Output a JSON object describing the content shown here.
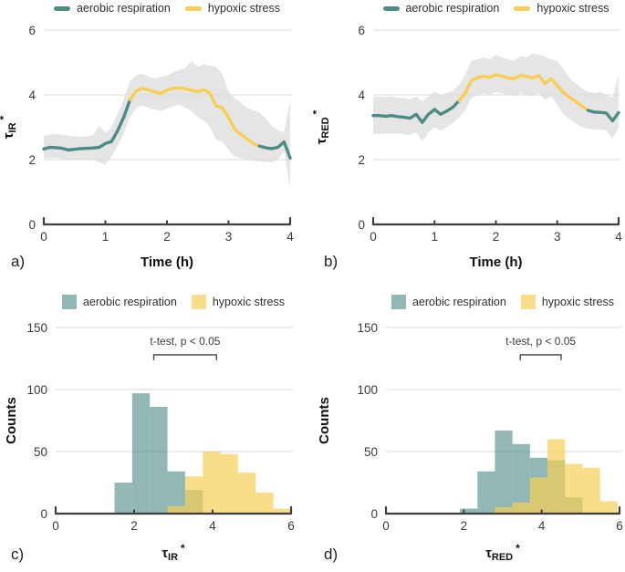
{
  "legend": {
    "items": [
      {
        "key": "aerobic",
        "label": "aerobic respiration"
      },
      {
        "key": "hypoxic",
        "label": "hypoxic stress"
      }
    ]
  },
  "colors": {
    "aerobic": "#4D8C86",
    "hypoxic": "#F8CE55",
    "axis": "#3F3F3F",
    "grid": "#D8D8D8",
    "band": "#DCDCDC",
    "tick_text": "#3A3A3A",
    "title_text": "#111111"
  },
  "chart_data": [
    {
      "panel": "a",
      "letter": "a)",
      "type": "line",
      "xlabel": "Time (h)",
      "ylabel": {
        "symbol": "τ",
        "sub": "IR",
        "sup": "*"
      },
      "xlim": [
        0,
        4
      ],
      "ylim": [
        0,
        6.4
      ],
      "x_ticks": [
        0,
        1,
        2,
        3,
        4
      ],
      "y_ticks": [
        0,
        2,
        4,
        6
      ],
      "gridlines": [
        2,
        4,
        6
      ],
      "x": [
        0,
        0.1,
        0.2,
        0.3,
        0.4,
        0.5,
        0.6,
        0.7,
        0.8,
        0.9,
        1,
        1.1,
        1.2,
        1.3,
        1.4,
        1.5,
        1.6,
        1.7,
        1.8,
        1.9,
        2,
        2.1,
        2.2,
        2.3,
        2.4,
        2.5,
        2.6,
        2.7,
        2.8,
        2.9,
        3,
        3.1,
        3.2,
        3.3,
        3.4,
        3.5,
        3.6,
        3.7,
        3.8,
        3.9,
        4
      ],
      "y": [
        2.33,
        2.38,
        2.37,
        2.35,
        2.3,
        2.32,
        2.34,
        2.35,
        2.36,
        2.38,
        2.5,
        2.56,
        2.9,
        3.32,
        3.85,
        4.12,
        4.2,
        4.15,
        4.1,
        4.04,
        4.15,
        4.2,
        4.22,
        4.19,
        4.14,
        4.1,
        4.16,
        4.04,
        3.66,
        3.6,
        3.3,
        2.94,
        2.78,
        2.64,
        2.5,
        2.42,
        2.37,
        2.34,
        2.38,
        2.55,
        2.05
      ],
      "band_lower": [
        2.03,
        2.05,
        2.05,
        2.02,
        2.0,
        2.0,
        2.01,
        2.02,
        2.0,
        1.92,
        1.85,
        2.1,
        2.42,
        2.82,
        3.32,
        3.58,
        3.68,
        3.6,
        3.55,
        3.5,
        3.58,
        3.64,
        3.7,
        3.6,
        3.5,
        3.32,
        3.2,
        3.0,
        2.62,
        2.55,
        2.3,
        2.1,
        2.05,
        2.0,
        1.96,
        1.95,
        1.93,
        1.92,
        2.0,
        2.25,
        1.15
      ],
      "band_upper": [
        2.74,
        2.77,
        2.79,
        2.77,
        2.74,
        2.72,
        2.7,
        2.72,
        2.76,
        3.04,
        2.82,
        3.0,
        3.42,
        3.86,
        4.44,
        4.6,
        4.66,
        4.56,
        4.5,
        4.55,
        4.6,
        4.7,
        4.76,
        4.84,
        5.04,
        4.86,
        4.94,
        4.9,
        4.86,
        4.64,
        4.1,
        3.9,
        3.76,
        3.6,
        3.52,
        3.46,
        3.28,
        3.05,
        2.9,
        2.85,
        3.85
      ],
      "segments": [
        {
          "from": 0,
          "to": 1.4,
          "series": "aerobic respiration",
          "color_key": "aerobic"
        },
        {
          "from": 1.4,
          "to": 3.5,
          "series": "hypoxic stress",
          "color_key": "hypoxic"
        },
        {
          "from": 3.5,
          "to": 4,
          "series": "aerobic respiration",
          "color_key": "aerobic"
        }
      ]
    },
    {
      "panel": "b",
      "letter": "b)",
      "type": "line",
      "xlabel": "Time (h)",
      "ylabel": {
        "symbol": "τ",
        "sub": "RED",
        "sup": "*"
      },
      "xlim": [
        0,
        4
      ],
      "ylim": [
        0,
        6.4
      ],
      "x_ticks": [
        0,
        1,
        2,
        3,
        4
      ],
      "y_ticks": [
        0,
        2,
        4,
        6
      ],
      "gridlines": [
        2,
        4,
        6
      ],
      "x": [
        0,
        0.1,
        0.2,
        0.3,
        0.4,
        0.5,
        0.6,
        0.7,
        0.8,
        0.9,
        1,
        1.1,
        1.2,
        1.3,
        1.4,
        1.5,
        1.6,
        1.7,
        1.8,
        1.9,
        2,
        2.1,
        2.2,
        2.3,
        2.4,
        2.5,
        2.6,
        2.7,
        2.8,
        2.9,
        3,
        3.1,
        3.2,
        3.3,
        3.4,
        3.5,
        3.6,
        3.7,
        3.8,
        3.9,
        4
      ],
      "y": [
        3.36,
        3.36,
        3.34,
        3.36,
        3.33,
        3.31,
        3.28,
        3.4,
        3.15,
        3.4,
        3.55,
        3.4,
        3.5,
        3.62,
        3.82,
        4.05,
        4.45,
        4.53,
        4.58,
        4.54,
        4.62,
        4.58,
        4.52,
        4.5,
        4.6,
        4.57,
        4.52,
        4.6,
        4.35,
        4.5,
        4.28,
        4.08,
        3.92,
        3.8,
        3.66,
        3.52,
        3.47,
        3.46,
        3.44,
        3.2,
        3.45
      ],
      "band_lower": [
        2.8,
        2.8,
        2.8,
        2.81,
        2.8,
        2.78,
        2.76,
        2.85,
        2.56,
        2.85,
        3.0,
        2.9,
        3.0,
        3.14,
        3.3,
        3.52,
        3.9,
        4.0,
        4.05,
        4.0,
        4.08,
        4.05,
        4.0,
        3.96,
        4.05,
        4.0,
        3.96,
        4.05,
        3.85,
        3.95,
        3.7,
        3.42,
        3.25,
        3.12,
        3.0,
        2.96,
        2.94,
        2.93,
        2.9,
        2.66,
        2.98
      ],
      "band_upper": [
        3.94,
        3.95,
        3.93,
        3.95,
        3.92,
        3.9,
        3.86,
        3.95,
        3.8,
        3.96,
        4.1,
        4.0,
        4.06,
        4.12,
        4.32,
        4.62,
        5.05,
        5.1,
        5.16,
        5.1,
        5.24,
        5.16,
        5.1,
        5.05,
        5.2,
        5.15,
        5.28,
        5.24,
        5.18,
        5.1,
        5.05,
        4.8,
        4.52,
        4.35,
        4.2,
        4.1,
        4.05,
        4.1,
        4.0,
        3.92,
        4.62
      ],
      "segments": [
        {
          "from": 0,
          "to": 1.4,
          "series": "aerobic respiration",
          "color_key": "aerobic"
        },
        {
          "from": 1.4,
          "to": 3.5,
          "series": "hypoxic stress",
          "color_key": "hypoxic"
        },
        {
          "from": 3.5,
          "to": 4,
          "series": "aerobic respiration",
          "color_key": "aerobic"
        }
      ]
    },
    {
      "panel": "c",
      "letter": "c)",
      "type": "histogram",
      "xlabel": {
        "symbol": "τ",
        "sub": "IR",
        "sup": "*"
      },
      "ylabel": "Counts",
      "xlim": [
        0,
        6
      ],
      "ylim": [
        0,
        160
      ],
      "x_ticks": [
        0,
        2,
        4,
        6
      ],
      "y_ticks": [
        0,
        50,
        100,
        150
      ],
      "gridlines": [
        50,
        100,
        150
      ],
      "bin_width": 0.45,
      "series": [
        {
          "name": "aerobic respiration",
          "color_key": "aerobic",
          "bin_start": 1.5,
          "counts": [
            25,
            97,
            86,
            34,
            19
          ]
        },
        {
          "name": "hypoxic stress",
          "color_key": "hypoxic",
          "bin_start": 2.85,
          "counts": [
            6,
            30,
            50,
            48,
            33,
            17,
            4
          ]
        }
      ],
      "significance": {
        "label": "t-test, p < 0.05",
        "x1": 2.5,
        "x2": 4.1,
        "y_counts": 128
      }
    },
    {
      "panel": "d",
      "letter": "d)",
      "type": "histogram",
      "xlabel": {
        "symbol": "τ",
        "sub": "RED",
        "sup": "*"
      },
      "ylabel": "Counts",
      "xlim": [
        0,
        6
      ],
      "ylim": [
        0,
        160
      ],
      "x_ticks": [
        0,
        2,
        4,
        6
      ],
      "y_ticks": [
        0,
        50,
        100,
        150
      ],
      "gridlines": [
        50,
        100,
        150
      ],
      "bin_width": 0.45,
      "series": [
        {
          "name": "aerobic respiration",
          "color_key": "aerobic",
          "bin_start": 1.9,
          "counts": [
            4,
            34,
            67,
            56,
            45,
            43,
            13
          ]
        },
        {
          "name": "hypoxic stress",
          "color_key": "hypoxic",
          "bin_start": 2.8,
          "counts": [
            5,
            9,
            29,
            60,
            40,
            37,
            10
          ]
        }
      ],
      "significance": {
        "label": "t-test, p < 0.05",
        "x1": 3.45,
        "x2": 4.5,
        "y_counts": 128
      }
    }
  ]
}
